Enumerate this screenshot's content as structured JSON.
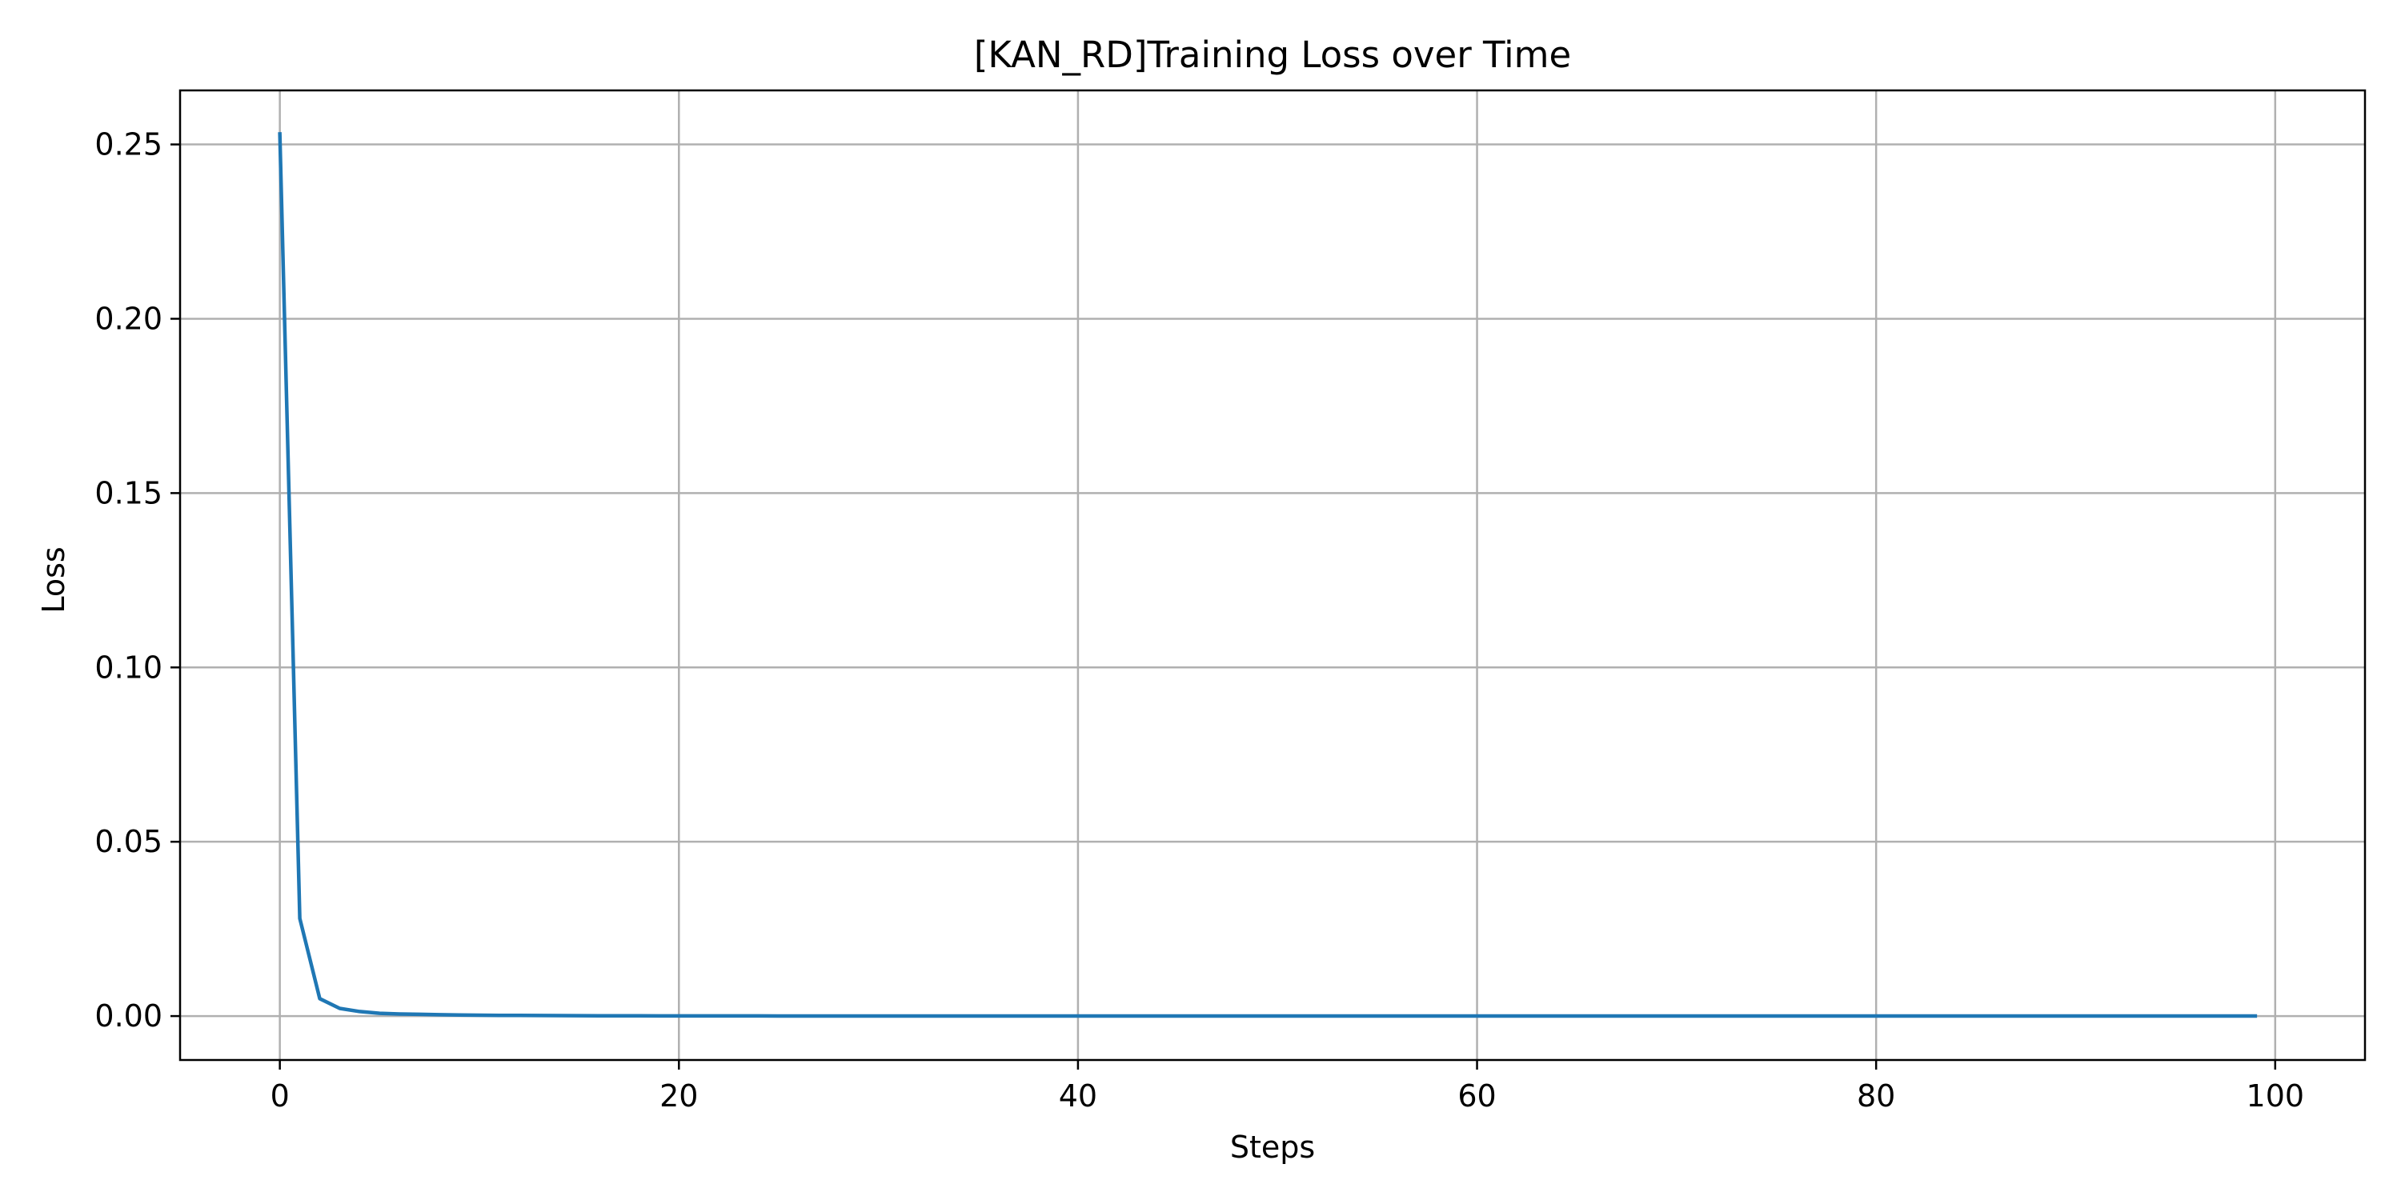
{
  "chart_data": {
    "type": "line",
    "title": "[KAN_RD]Training Loss over Time",
    "xlabel": "Steps",
    "ylabel": "Loss",
    "xlim": [
      -5,
      104.5
    ],
    "ylim": [
      -0.0126,
      0.2655
    ],
    "xticks": [
      0,
      20,
      40,
      60,
      80,
      100
    ],
    "xtick_labels": [
      "0",
      "20",
      "40",
      "60",
      "80",
      "100"
    ],
    "yticks": [
      0.0,
      0.05,
      0.1,
      0.15,
      0.2,
      0.25
    ],
    "ytick_labels": [
      "0.00",
      "0.05",
      "0.10",
      "0.15",
      "0.20",
      "0.25"
    ],
    "grid": true,
    "series": [
      {
        "name": "Training Loss",
        "color": "#1f77b4",
        "x": [
          0,
          1,
          2,
          3,
          4,
          5,
          6,
          7,
          8,
          9,
          10,
          11,
          12,
          13,
          14,
          15,
          16,
          17,
          18,
          19,
          20,
          21,
          22,
          23,
          24,
          25,
          26,
          27,
          28,
          29,
          30,
          31,
          32,
          33,
          34,
          35,
          36,
          37,
          38,
          39,
          40,
          41,
          42,
          43,
          44,
          45,
          46,
          47,
          48,
          49,
          50,
          51,
          52,
          53,
          54,
          55,
          56,
          57,
          58,
          59,
          60,
          61,
          62,
          63,
          64,
          65,
          66,
          67,
          68,
          69,
          70,
          71,
          72,
          73,
          74,
          75,
          76,
          77,
          78,
          79,
          80,
          81,
          82,
          83,
          84,
          85,
          86,
          87,
          88,
          89,
          90,
          91,
          92,
          93,
          94,
          95,
          96,
          97,
          98,
          99
        ],
        "values": [
          0.253,
          0.028,
          0.005,
          0.0022,
          0.0013,
          0.0008,
          0.0006,
          0.0005,
          0.0004,
          0.0003,
          0.00025,
          0.0002,
          0.00018,
          0.00015,
          0.00012,
          0.0001,
          9e-05,
          8e-05,
          7e-05,
          6e-05,
          5e-05,
          5e-05,
          4e-05,
          4e-05,
          4e-05,
          3e-05,
          3e-05,
          3e-05,
          3e-05,
          2e-05,
          2e-05,
          2e-05,
          2e-05,
          2e-05,
          2e-05,
          2e-05,
          2e-05,
          1e-05,
          1e-05,
          1e-05,
          1e-05,
          1e-05,
          1e-05,
          1e-05,
          1e-05,
          1e-05,
          1e-05,
          1e-05,
          1e-05,
          1e-05,
          1e-05,
          1e-05,
          1e-05,
          1e-05,
          1e-05,
          1e-05,
          1e-05,
          1e-05,
          1e-05,
          1e-05,
          1e-05,
          1e-05,
          1e-05,
          1e-05,
          1e-05,
          1e-05,
          1e-05,
          1e-05,
          1e-05,
          1e-05,
          1e-05,
          1e-05,
          1e-05,
          1e-05,
          1e-05,
          1e-05,
          1e-05,
          1e-05,
          1e-05,
          1e-05,
          1e-05,
          1e-05,
          1e-05,
          1e-05,
          1e-05,
          1e-05,
          1e-05,
          1e-05,
          1e-05,
          1e-05,
          1e-05,
          1e-05,
          1e-05,
          1e-05,
          1e-05,
          1e-05,
          1e-05,
          1e-05,
          1e-05,
          1e-05
        ]
      }
    ]
  }
}
